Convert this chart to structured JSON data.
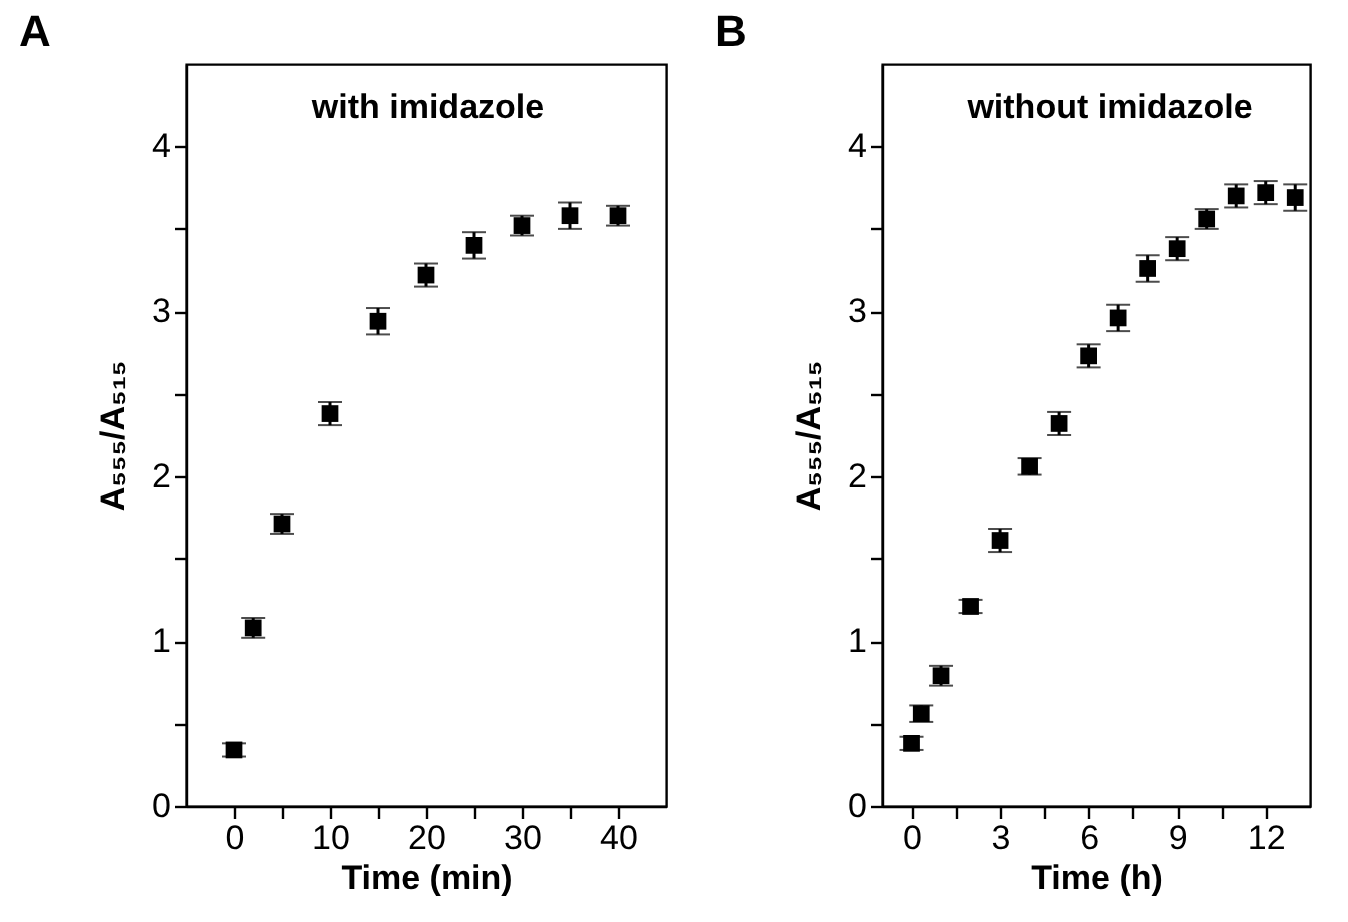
{
  "chart_data": [
    {
      "type": "scatter",
      "title": "A",
      "xlabel": "Time (min)",
      "ylabel": "A₅₅₅/A₅₁₅",
      "annotations": [
        "with imidazole"
      ],
      "marker": "square",
      "color": "#000000",
      "x": [
        0,
        2,
        5,
        10,
        15,
        20,
        25,
        30,
        35,
        40
      ],
      "values": [
        0.34,
        1.08,
        1.71,
        2.38,
        2.94,
        3.22,
        3.4,
        3.52,
        3.58,
        3.58
      ],
      "errors": [
        0.04,
        0.06,
        0.06,
        0.07,
        0.08,
        0.07,
        0.08,
        0.06,
        0.08,
        0.06
      ],
      "xlim": [
        -5,
        45
      ],
      "xticks": [
        0,
        {
          "value": 5,
          "label": null
        },
        10,
        {
          "value": 15,
          "label": null
        },
        20,
        {
          "value": 25,
          "label": null
        },
        30,
        {
          "value": 35,
          "label": null
        },
        40
      ],
      "ylim": [
        0,
        4.5
      ],
      "yticks": [
        0,
        {
          "value": 0.5,
          "label": null
        },
        1,
        {
          "value": 1.5,
          "label": null
        },
        2,
        {
          "value": 2.5,
          "label": null
        },
        3,
        {
          "value": 3.5,
          "label": null
        },
        4
      ]
    },
    {
      "type": "scatter",
      "title": "B",
      "xlabel": "Time (h)",
      "ylabel": "A₅₅₅/A₅₁₅",
      "annotations": [
        "without imidazole"
      ],
      "marker": "square",
      "color": "#000000",
      "x": [
        0,
        0.33,
        1,
        2,
        3,
        4,
        5,
        6,
        7,
        8,
        9,
        10,
        11,
        12,
        13
      ],
      "values": [
        0.38,
        0.56,
        0.79,
        1.21,
        1.61,
        2.06,
        2.32,
        2.73,
        2.96,
        3.26,
        3.38,
        3.56,
        3.7,
        3.72,
        3.69
      ],
      "errors": [
        0.04,
        0.05,
        0.06,
        0.04,
        0.07,
        0.05,
        0.07,
        0.07,
        0.08,
        0.08,
        0.07,
        0.06,
        0.07,
        0.07,
        0.08
      ],
      "xlim": [
        -1,
        13.5
      ],
      "xticks": [
        0,
        {
          "value": 1.5,
          "label": null
        },
        3,
        {
          "value": 4.5,
          "label": null
        },
        6,
        {
          "value": 7.5,
          "label": null
        },
        9,
        {
          "value": 10.5,
          "label": null
        },
        12
      ],
      "ylim": [
        0,
        4.5
      ],
      "yticks": [
        0,
        {
          "value": 0.5,
          "label": null
        },
        1,
        {
          "value": 1.5,
          "label": null
        },
        2,
        {
          "value": 2.5,
          "label": null
        },
        3,
        {
          "value": 3.5,
          "label": null
        },
        4
      ]
    }
  ]
}
